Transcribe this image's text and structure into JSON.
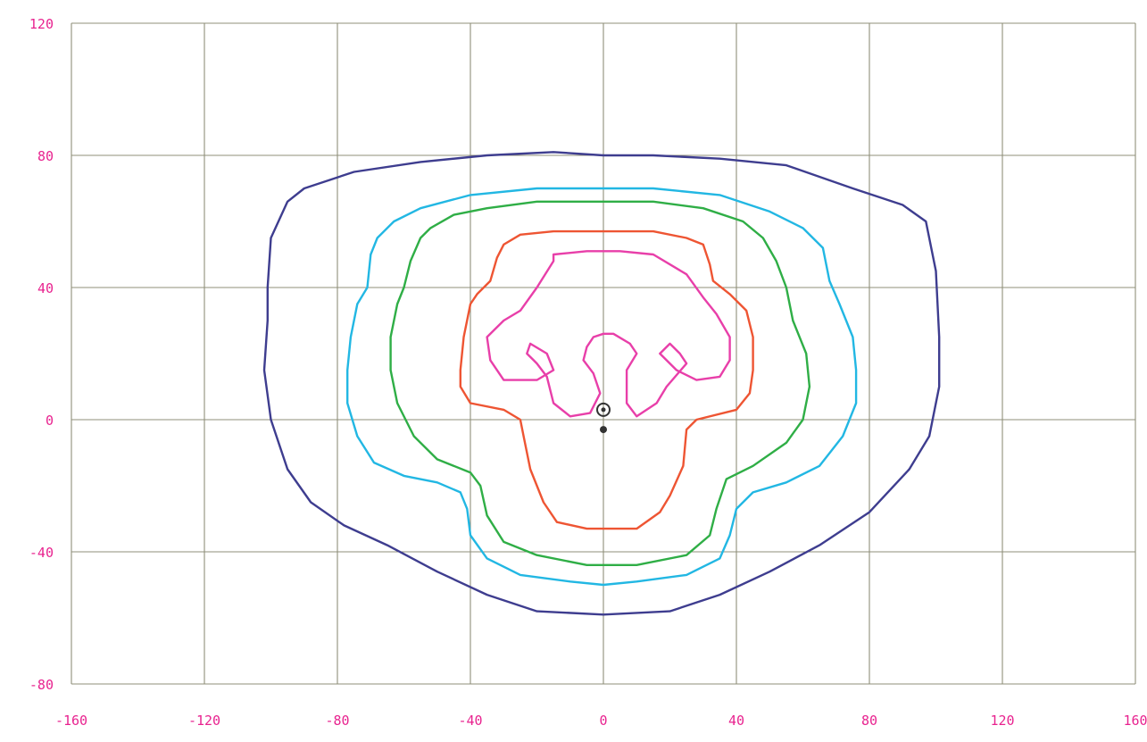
{
  "chart_data": {
    "type": "line",
    "title": "",
    "xlabel": "",
    "ylabel": "",
    "xlim": [
      -160,
      160
    ],
    "ylim": [
      -80,
      120
    ],
    "xticks": [
      -160,
      -120,
      -80,
      -40,
      0,
      40,
      80,
      120,
      160
    ],
    "yticks": [
      -80,
      -40,
      0,
      40,
      80,
      120
    ],
    "xtick_labels": [
      "-160",
      "-120",
      "-80",
      "-40",
      "0",
      "40",
      "80",
      "120",
      "160"
    ],
    "ytick_labels": [
      "-80",
      "-40",
      "0",
      "40",
      "80",
      "120"
    ],
    "grid": true,
    "colors": {
      "grid": "#8f8f7a",
      "tick_label": "#e8238f",
      "marker": "#333333"
    },
    "series": [
      {
        "color": "#3e3d8f",
        "points": [
          [
            0,
            80
          ],
          [
            -15,
            81
          ],
          [
            -35,
            80
          ],
          [
            -55,
            78
          ],
          [
            -75,
            75
          ],
          [
            -90,
            70
          ],
          [
            -95,
            66
          ],
          [
            -100,
            55
          ],
          [
            -101,
            40
          ],
          [
            -101,
            30
          ],
          [
            -102,
            15
          ],
          [
            -100,
            0
          ],
          [
            -95,
            -15
          ],
          [
            -88,
            -25
          ],
          [
            -78,
            -32
          ],
          [
            -65,
            -38
          ],
          [
            -50,
            -46
          ],
          [
            -35,
            -53
          ],
          [
            -20,
            -58
          ],
          [
            0,
            -59
          ],
          [
            20,
            -58
          ],
          [
            35,
            -53
          ],
          [
            50,
            -46
          ],
          [
            65,
            -38
          ],
          [
            80,
            -28
          ],
          [
            92,
            -15
          ],
          [
            98,
            -5
          ],
          [
            101,
            10
          ],
          [
            101,
            25
          ],
          [
            100,
            45
          ],
          [
            97,
            60
          ],
          [
            90,
            65
          ],
          [
            75,
            70
          ],
          [
            55,
            77
          ],
          [
            35,
            79
          ],
          [
            15,
            80
          ],
          [
            0,
            80
          ]
        ]
      },
      {
        "color": "#22b7e3",
        "points": [
          [
            0,
            70
          ],
          [
            -20,
            70
          ],
          [
            -40,
            68
          ],
          [
            -55,
            64
          ],
          [
            -63,
            60
          ],
          [
            -68,
            55
          ],
          [
            -70,
            50
          ],
          [
            -71,
            40
          ],
          [
            -74,
            35
          ],
          [
            -76,
            25
          ],
          [
            -77,
            15
          ],
          [
            -77,
            5
          ],
          [
            -74,
            -5
          ],
          [
            -69,
            -13
          ],
          [
            -60,
            -17
          ],
          [
            -50,
            -19
          ],
          [
            -43,
            -22
          ],
          [
            -41,
            -27
          ],
          [
            -40,
            -35
          ],
          [
            -35,
            -42
          ],
          [
            -25,
            -47
          ],
          [
            -10,
            -49
          ],
          [
            0,
            -50
          ],
          [
            10,
            -49
          ],
          [
            25,
            -47
          ],
          [
            35,
            -42
          ],
          [
            38,
            -35
          ],
          [
            40,
            -27
          ],
          [
            45,
            -22
          ],
          [
            55,
            -19
          ],
          [
            65,
            -14
          ],
          [
            72,
            -5
          ],
          [
            76,
            5
          ],
          [
            76,
            15
          ],
          [
            75,
            25
          ],
          [
            71,
            35
          ],
          [
            68,
            42
          ],
          [
            66,
            52
          ],
          [
            60,
            58
          ],
          [
            50,
            63
          ],
          [
            35,
            68
          ],
          [
            15,
            70
          ],
          [
            0,
            70
          ]
        ]
      },
      {
        "color": "#2fae46",
        "points": [
          [
            0,
            66
          ],
          [
            -20,
            66
          ],
          [
            -35,
            64
          ],
          [
            -45,
            62
          ],
          [
            -52,
            58
          ],
          [
            -55,
            55
          ],
          [
            -58,
            48
          ],
          [
            -60,
            40
          ],
          [
            -62,
            35
          ],
          [
            -64,
            25
          ],
          [
            -64,
            15
          ],
          [
            -62,
            5
          ],
          [
            -57,
            -5
          ],
          [
            -50,
            -12
          ],
          [
            -40,
            -16
          ],
          [
            -37,
            -20
          ],
          [
            -35,
            -29
          ],
          [
            -30,
            -37
          ],
          [
            -20,
            -41
          ],
          [
            -5,
            -44
          ],
          [
            0,
            -44
          ],
          [
            10,
            -44
          ],
          [
            25,
            -41
          ],
          [
            32,
            -35
          ],
          [
            34,
            -27
          ],
          [
            37,
            -18
          ],
          [
            45,
            -14
          ],
          [
            55,
            -7
          ],
          [
            60,
            0
          ],
          [
            62,
            10
          ],
          [
            61,
            20
          ],
          [
            57,
            30
          ],
          [
            55,
            40
          ],
          [
            52,
            48
          ],
          [
            48,
            55
          ],
          [
            42,
            60
          ],
          [
            30,
            64
          ],
          [
            15,
            66
          ],
          [
            0,
            66
          ]
        ]
      },
      {
        "color": "#ee5533",
        "points": [
          [
            0,
            57
          ],
          [
            -15,
            57
          ],
          [
            -25,
            56
          ],
          [
            -30,
            53
          ],
          [
            -32,
            49
          ],
          [
            -34,
            42
          ],
          [
            -38,
            38
          ],
          [
            -40,
            35
          ],
          [
            -42,
            25
          ],
          [
            -43,
            15
          ],
          [
            -43,
            10
          ],
          [
            -40,
            5
          ],
          [
            -30,
            3
          ],
          [
            -25,
            0
          ],
          [
            -24,
            -5
          ],
          [
            -22,
            -15
          ],
          [
            -18,
            -25
          ],
          [
            -14,
            -31
          ],
          [
            -5,
            -33
          ],
          [
            0,
            -33
          ],
          [
            10,
            -33
          ],
          [
            17,
            -28
          ],
          [
            20,
            -23
          ],
          [
            24,
            -14
          ],
          [
            25,
            -3
          ],
          [
            28,
            0
          ],
          [
            40,
            3
          ],
          [
            44,
            8
          ],
          [
            45,
            15
          ],
          [
            45,
            25
          ],
          [
            43,
            33
          ],
          [
            38,
            38
          ],
          [
            33,
            42
          ],
          [
            32,
            47
          ],
          [
            30,
            53
          ],
          [
            25,
            55
          ],
          [
            15,
            57
          ],
          [
            0,
            57
          ]
        ]
      },
      {
        "color": "#e83fa9",
        "points": [
          [
            -15,
            50
          ],
          [
            -5,
            51
          ],
          [
            5,
            51
          ],
          [
            15,
            50
          ],
          [
            25,
            44
          ],
          [
            30,
            37
          ],
          [
            34,
            32
          ],
          [
            38,
            25
          ],
          [
            38,
            18
          ],
          [
            35,
            13
          ],
          [
            28,
            12
          ],
          [
            22,
            15
          ],
          [
            17,
            20
          ],
          [
            20,
            23
          ],
          [
            23,
            20
          ],
          [
            25,
            17
          ],
          [
            19,
            10
          ],
          [
            16,
            5
          ],
          [
            10,
            1
          ],
          [
            7,
            5
          ],
          [
            7,
            15
          ],
          [
            10,
            20
          ],
          [
            8,
            23
          ],
          [
            3,
            26
          ],
          [
            0,
            26
          ],
          [
            -3,
            25
          ],
          [
            -5,
            22
          ],
          [
            -6,
            18
          ],
          [
            -3,
            14
          ],
          [
            -1,
            8
          ],
          [
            -4,
            2
          ],
          [
            -10,
            1
          ],
          [
            -15,
            5
          ],
          [
            -17,
            13
          ],
          [
            -20,
            17
          ],
          [
            -21,
            18
          ],
          [
            -23,
            20
          ],
          [
            -22,
            23
          ],
          [
            -17,
            20
          ],
          [
            -15,
            15
          ],
          [
            -20,
            12
          ],
          [
            -30,
            12
          ],
          [
            -34,
            18
          ],
          [
            -35,
            25
          ],
          [
            -30,
            30
          ],
          [
            -25,
            33
          ],
          [
            -20,
            40
          ],
          [
            -15,
            48
          ],
          [
            -15,
            50
          ]
        ]
      }
    ],
    "markers": [
      {
        "kind": "target",
        "x": 0,
        "y": 3
      },
      {
        "kind": "dot",
        "x": 0,
        "y": -3
      }
    ]
  }
}
